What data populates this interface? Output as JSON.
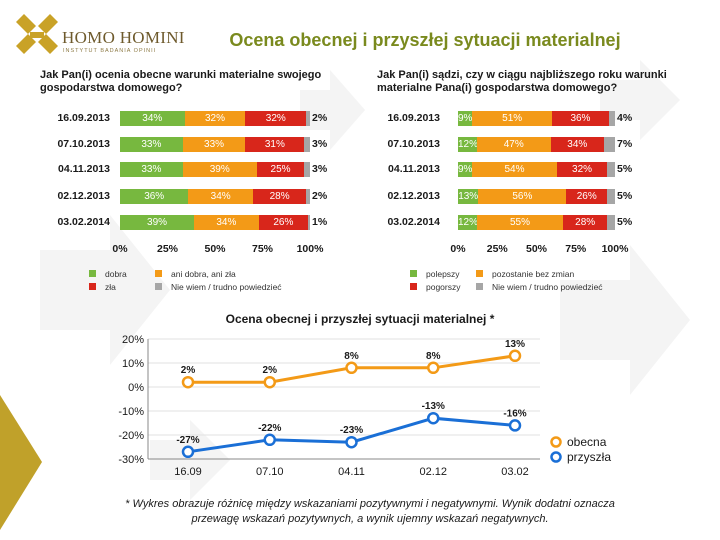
{
  "brand": {
    "name": "HOMO HOMINI",
    "subtitle": "INSTYTUT BADANIA OPINII",
    "accent": "#c9a227",
    "title_color": "#7a8a1e"
  },
  "title": "Ocena obecnej i przyszłej sytuacji materialnej",
  "chart_data": [
    {
      "type": "bar",
      "stacked": true,
      "orientation": "horizontal",
      "title": "Jak Pan(i) ocenia obecne warunki materialne swojego gospodarstwa domowego?",
      "categories": [
        "16.09.2013",
        "07.10.2013",
        "04.11.2013",
        "02.12.2013",
        "03.02.2014"
      ],
      "series": [
        {
          "name": "dobra",
          "color": "#77b83f",
          "values": [
            34,
            33,
            33,
            36,
            39
          ]
        },
        {
          "name": "ani dobra, ani zła",
          "color": "#f39a17",
          "values": [
            32,
            33,
            39,
            34,
            34
          ]
        },
        {
          "name": "zła",
          "color": "#d8261b",
          "values": [
            32,
            31,
            25,
            28,
            26
          ]
        },
        {
          "name": "Nie wiem / trudno powiedzieć",
          "color": "#a6a6a6",
          "values": [
            2,
            3,
            3,
            2,
            1
          ]
        }
      ],
      "xticks": [
        "0%",
        "25%",
        "50%",
        "75%",
        "100%"
      ],
      "xlim": [
        0,
        100
      ]
    },
    {
      "type": "bar",
      "stacked": true,
      "orientation": "horizontal",
      "title": "Jak Pan(i) sądzi, czy w ciągu najbliższego roku warunki materialne Pana(i) gospodarstwa domowego?",
      "categories": [
        "16.09.2013",
        "07.10.2013",
        "04.11.2013",
        "02.12.2013",
        "03.02.2014"
      ],
      "series": [
        {
          "name": "polepszy",
          "color": "#77b83f",
          "values": [
            9,
            12,
            9,
            13,
            12
          ]
        },
        {
          "name": "pozostanie bez zmian",
          "color": "#f39a17",
          "values": [
            51,
            47,
            54,
            56,
            55
          ]
        },
        {
          "name": "pogorszy",
          "color": "#d8261b",
          "values": [
            36,
            34,
            32,
            26,
            28
          ]
        },
        {
          "name": "Nie wiem / trudno powiedzieć",
          "color": "#a6a6a6",
          "values": [
            4,
            7,
            5,
            5,
            5
          ]
        }
      ],
      "xticks": [
        "0%",
        "25%",
        "50%",
        "75%",
        "100%"
      ],
      "xlim": [
        0,
        100
      ]
    },
    {
      "type": "line",
      "title": "Ocena obecnej i przyszłej sytuacji materialnej *",
      "categories": [
        "16.09",
        "07.10",
        "04.11",
        "02.12",
        "03.02"
      ],
      "series": [
        {
          "name": "obecna",
          "color": "#f39a17",
          "values": [
            2,
            2,
            8,
            8,
            13
          ],
          "labels": [
            "2%",
            "2%",
            "8%",
            "8%",
            "13%"
          ]
        },
        {
          "name": "przyszła",
          "color": "#1a6fd6",
          "values": [
            -27,
            -22,
            -23,
            -13,
            -16
          ],
          "labels": [
            "-27%",
            "-22%",
            "-23%",
            "-13%",
            "-16%"
          ]
        }
      ],
      "yticks": [
        "20%",
        "10%",
        "0%",
        "-10%",
        "-20%",
        "-30%"
      ],
      "ylim": [
        -30,
        20
      ],
      "legend_position": "right"
    }
  ],
  "footnote": "* Wykres obrazuje różnicę między wskazaniami pozytywnymi i negatywnymi. Wynik dodatni oznacza przewagę wskazań pozytywnych, a wynik ujemny wskazań negatywnych."
}
